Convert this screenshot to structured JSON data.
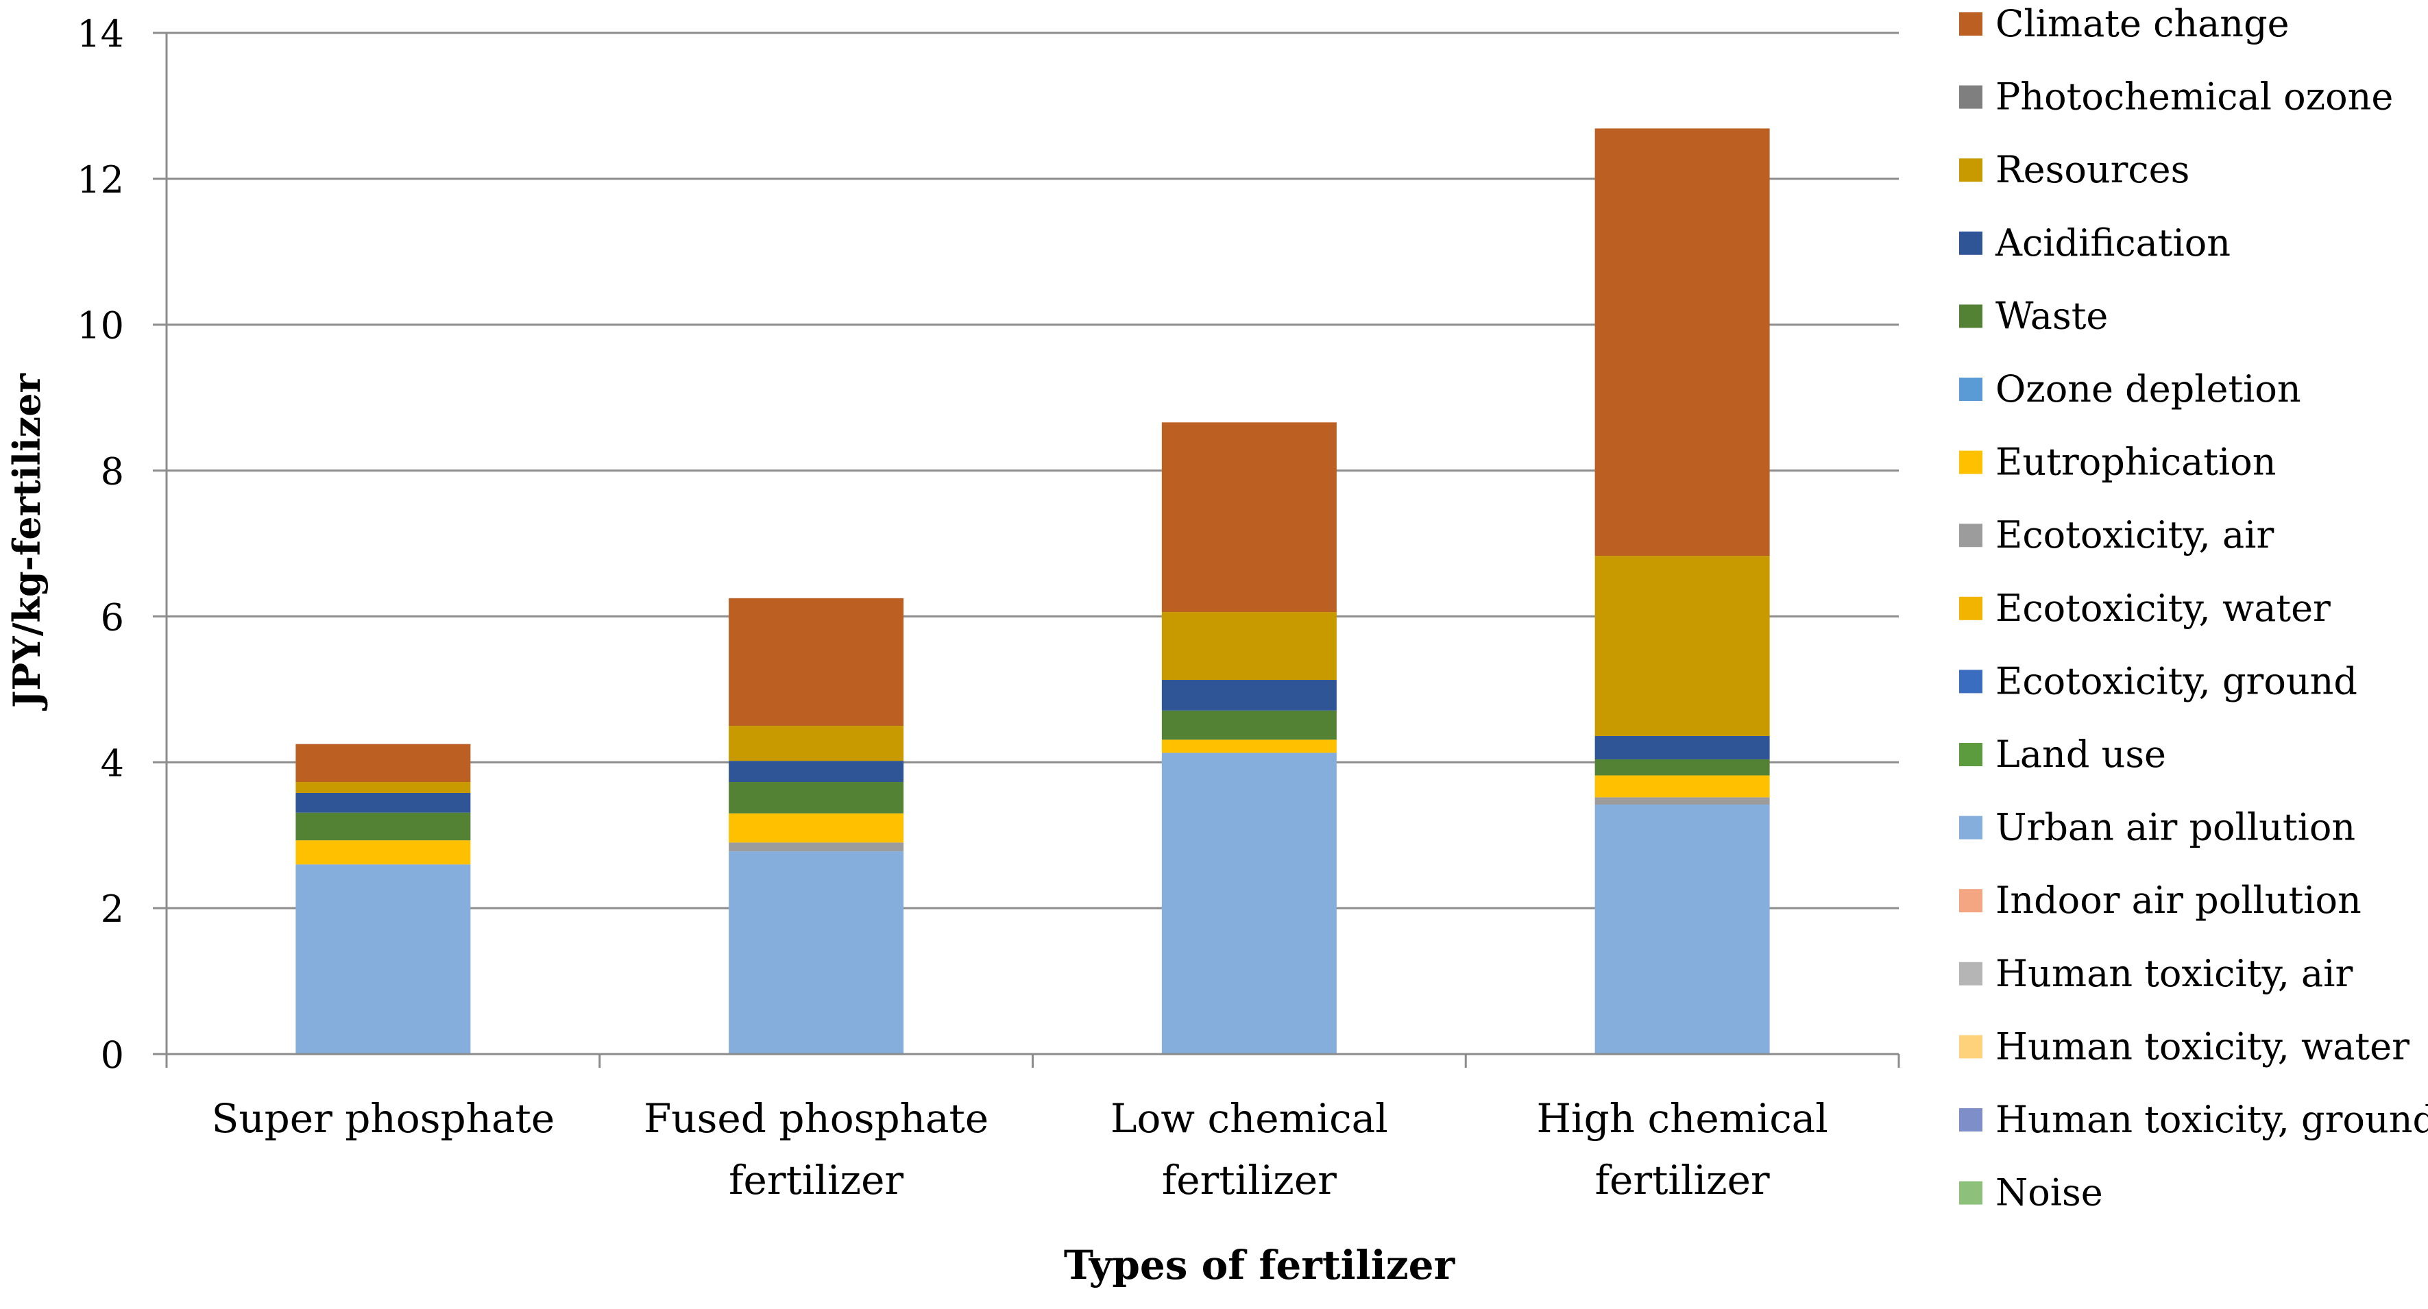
{
  "chart_data": {
    "type": "bar",
    "stacked": true,
    "title": "",
    "xlabel": "Types of fertilizer",
    "ylabel": "JPY/kg-fertilizer",
    "ylim": [
      0,
      14
    ],
    "yticks": [
      0,
      2,
      4,
      6,
      8,
      10,
      12,
      14
    ],
    "grid": true,
    "legend_position": "right",
    "categories": [
      [
        "Super phosphate"
      ],
      [
        "Fused phosphate",
        "fertilizer"
      ],
      [
        "Low chemical",
        "fertilizer"
      ],
      [
        "High chemical",
        "fertilizer"
      ]
    ],
    "series": [
      {
        "name": "Noise",
        "color": "#8dc07a",
        "values": [
          0,
          0,
          0,
          0
        ]
      },
      {
        "name": "Human toxicity, ground",
        "color": "#7d8ec8",
        "values": [
          0,
          0,
          0,
          0
        ]
      },
      {
        "name": "Human toxicity, water",
        "color": "#fdd27a",
        "values": [
          0,
          0,
          0,
          0
        ]
      },
      {
        "name": "Human toxicity, air",
        "color": "#b5b5b5",
        "values": [
          0,
          0,
          0,
          0
        ]
      },
      {
        "name": "Indoor air pollution",
        "color": "#f4a582",
        "values": [
          0,
          0,
          0,
          0
        ]
      },
      {
        "name": "Urban air pollution",
        "color": "#86aedc",
        "values": [
          2.6,
          2.78,
          4.13,
          3.42
        ]
      },
      {
        "name": "Land use",
        "color": "#5c9c3f",
        "values": [
          0,
          0,
          0,
          0
        ]
      },
      {
        "name": "Ecotoxicity, ground",
        "color": "#3a6cc0",
        "values": [
          0,
          0,
          0,
          0
        ]
      },
      {
        "name": "Ecotoxicity, water",
        "color": "#f2b400",
        "values": [
          0,
          0,
          0,
          0
        ]
      },
      {
        "name": "Ecotoxicity, air",
        "color": "#9c9c9c",
        "values": [
          0,
          0.12,
          0,
          0.1
        ]
      },
      {
        "name": "Eutrophication",
        "color": "#ffc000",
        "values": [
          0.33,
          0.4,
          0.18,
          0.3
        ]
      },
      {
        "name": "Ozone depletion",
        "color": "#5b9bd5",
        "values": [
          0,
          0,
          0,
          0
        ]
      },
      {
        "name": "Waste",
        "color": "#548235",
        "values": [
          0.38,
          0.43,
          0.4,
          0.22
        ]
      },
      {
        "name": "Acidification",
        "color": "#2f5597",
        "values": [
          0.27,
          0.29,
          0.42,
          0.32
        ]
      },
      {
        "name": "Resources",
        "color": "#c99a00",
        "values": [
          0.15,
          0.48,
          0.93,
          2.47
        ]
      },
      {
        "name": "Photochemical ozone",
        "color": "#7f7f7f",
        "values": [
          0,
          0,
          0,
          0
        ]
      },
      {
        "name": "Climate change",
        "color": "#bb5f22",
        "values": [
          0.52,
          1.75,
          2.6,
          5.86
        ]
      }
    ]
  }
}
